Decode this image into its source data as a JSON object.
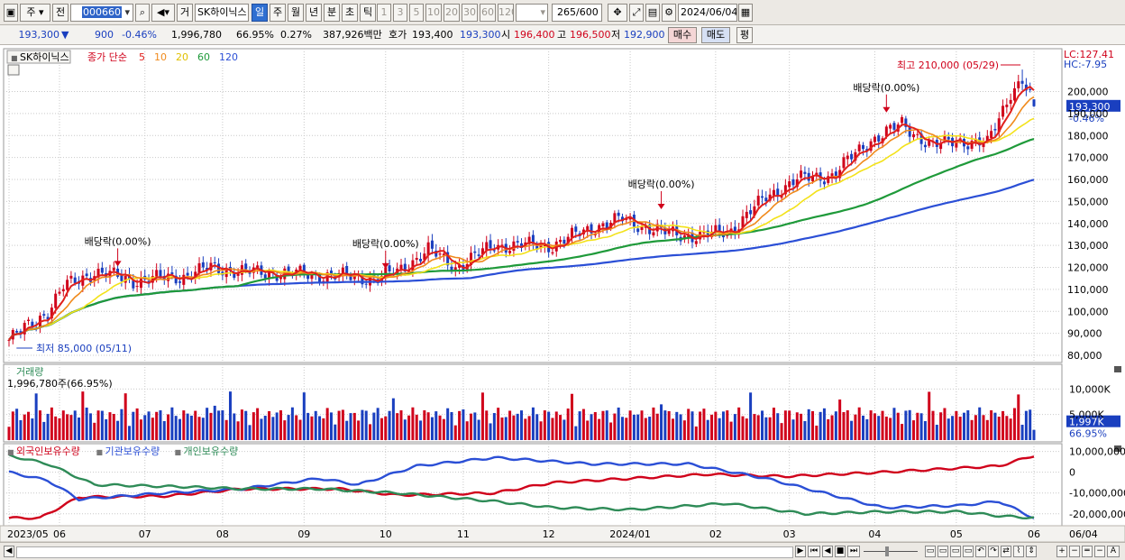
{
  "toolbar": {
    "type_main": "주",
    "type_prev": "전",
    "stock_code": "000660",
    "btn_ge": "거",
    "stock_name": "SK하이닉스",
    "periods": [
      {
        "label": "일",
        "selected": true
      },
      {
        "label": "주",
        "selected": false
      },
      {
        "label": "월",
        "selected": false
      },
      {
        "label": "년",
        "selected": false
      },
      {
        "label": "분",
        "selected": false
      },
      {
        "label": "초",
        "selected": false
      },
      {
        "label": "틱",
        "selected": false
      }
    ],
    "intervals": [
      "1",
      "3",
      "5",
      "10",
      "20",
      "30",
      "60",
      "120"
    ],
    "count": "265",
    "count_total": "/600",
    "date": "2024/06/04"
  },
  "info": {
    "price": "193,300",
    "arrow": "▼",
    "change": "900",
    "change_pct": "-0.46%",
    "volume": "1,996,780",
    "volume_pct": "66.95%",
    "turnover_pct": "0.27%",
    "trade_value": "387,926백만",
    "bid_label": "호가",
    "bid": "193,400",
    "ask": "193,300",
    "open_label": "시",
    "open": "196,400",
    "high_label": "고",
    "high": "196,500",
    "low_label": "저",
    "low": "192,900",
    "buy_btn": "매수",
    "sell_btn": "매도",
    "eval_btn": "평"
  },
  "price_panel": {
    "stock_label": "SK하이닉스",
    "ma_title": "종가 단순",
    "ma_periods": [
      {
        "label": "5",
        "color": "#e0201c"
      },
      {
        "label": "10",
        "color": "#f08a1c"
      },
      {
        "label": "20",
        "color": "#f3e21a"
      },
      {
        "label": "60",
        "color": "#1f9a3a"
      },
      {
        "label": "120",
        "color": "#2b4fd6"
      }
    ],
    "lc": "LC:127.41",
    "hc": "HC:-7.95",
    "current_price": "193,300",
    "current_pct": "-0.46%",
    "high_annot": "최고 210,000 (05/29)",
    "low_annot": "최저 85,000 (05/11)",
    "dividend_annot": "배당락(0.00%)",
    "y_ticks": [
      "200,000",
      "190,000",
      "180,000",
      "170,000",
      "160,000",
      "150,000",
      "140,000",
      "130,000",
      "120,000",
      "110,000",
      "100,000",
      "90,000",
      "80,000"
    ]
  },
  "volume_panel": {
    "title": "거래량",
    "value": "1,996,780주(66.95%)",
    "y_ticks": [
      "10,000K",
      "5,000K"
    ],
    "current": "1,997K",
    "current_pct": "66.95%"
  },
  "holding_panel": {
    "series": [
      {
        "name": "외국인보유수량",
        "color": "#d0021b"
      },
      {
        "name": "기관보유수량",
        "color": "#2b4fd6"
      },
      {
        "name": "개인보유수량",
        "color": "#2e8b57"
      }
    ],
    "y_ticks": [
      "10,000,000",
      "0",
      "-10,000,000",
      "-20,000,000"
    ]
  },
  "x_axis": {
    "labels": [
      "2023/05",
      "06",
      "07",
      "08",
      "09",
      "10",
      "11",
      "12",
      "2024/01",
      "02",
      "03",
      "04",
      "05",
      "06"
    ],
    "end_label": "06/04"
  },
  "colors": {
    "up": "#d0021b",
    "down": "#1a3fbf",
    "grid": "#c9c9c9"
  }
}
